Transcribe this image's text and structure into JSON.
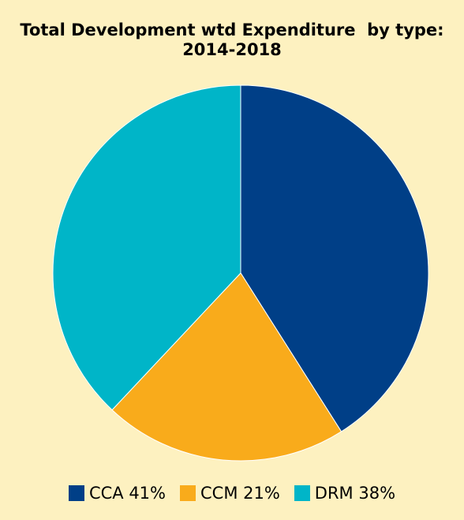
{
  "chart_data": {
    "type": "pie",
    "title_lines": [
      "Total Development wtd Expenditure  by type:",
      "2014-2018"
    ],
    "slices": [
      {
        "label": "CCA 41%",
        "value": 41,
        "color": "#003f87"
      },
      {
        "label": "CCM 21%",
        "value": 21,
        "color": "#f9ab1b"
      },
      {
        "label": "DRM 38%",
        "value": 38,
        "color": "#00b5c8"
      }
    ],
    "legend_position": "bottom"
  }
}
